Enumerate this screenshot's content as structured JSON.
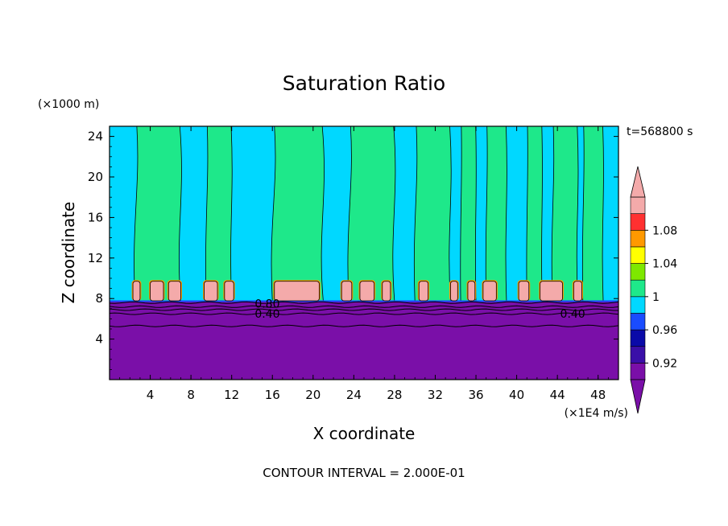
{
  "chart_data": {
    "type": "heatmap",
    "title": "Saturation Ratio",
    "time_label": "t=568800 s",
    "xlabel": "X coordinate",
    "ylabel": "Z coordinate",
    "x_units": "(×1E4 m/s)",
    "y_units": "(×1000 m)",
    "footer": "CONTOUR INTERVAL = 2.000E-01",
    "xlim": [
      0,
      50
    ],
    "ylim": [
      0,
      25
    ],
    "x_ticks": [
      4,
      8,
      12,
      16,
      20,
      24,
      28,
      32,
      36,
      40,
      44,
      48
    ],
    "y_ticks": [
      4,
      8,
      12,
      16,
      20,
      24
    ],
    "colorbar": {
      "labels": [
        "0.92",
        "0.96",
        "1",
        "1.04",
        "1.08"
      ],
      "levels": [
        0.9,
        0.92,
        0.94,
        0.96,
        0.98,
        1.0,
        1.02,
        1.04,
        1.06,
        1.08,
        1.1
      ],
      "colors": [
        "#7a0fa8",
        "#3a0fa8",
        "#0a0aa8",
        "#1a4cff",
        "#00d8ff",
        "#1ee88a",
        "#7ee800",
        "#ffff00",
        "#ff9900",
        "#ff3030",
        "#f4aaaa"
      ],
      "extend": "both"
    },
    "contour_labels": [
      {
        "text": "0.80",
        "x": 15.5,
        "y": 7.5
      },
      {
        "text": "0.40",
        "x": 15.5,
        "y": 6.5
      },
      {
        "text": "0.40",
        "x": 45.5,
        "y": 6.5
      }
    ],
    "fields": {
      "lower_layer": {
        "z_range": [
          0,
          7.7
        ],
        "value": "below 0.90",
        "color": "#7a0fa8"
      },
      "upper_layer": {
        "z_range": [
          7.7,
          25
        ],
        "base_value": 0.99,
        "base_color": "#1ee88a"
      },
      "columns": [
        {
          "x": [
            2.5,
            7.0
          ],
          "value": 1.01
        },
        {
          "x": [
            9.5,
            12.0
          ],
          "value": 1.01
        },
        {
          "x": [
            16.0,
            21.0
          ],
          "value": 1.01
        },
        {
          "x": [
            23.5,
            28.0
          ],
          "value": 1.01
        },
        {
          "x": [
            30.0,
            33.5
          ],
          "value": 1.01
        },
        {
          "x": [
            34.5,
            36.0
          ],
          "value": 1.01
        },
        {
          "x": [
            37.0,
            39.0
          ],
          "value": 1.01
        },
        {
          "x": [
            41.0,
            42.5
          ],
          "value": 1.01
        },
        {
          "x": [
            43.5,
            46.0
          ],
          "value": 1.01
        },
        {
          "x": [
            46.5,
            48.5
          ],
          "value": 1.01
        }
      ],
      "cloud_caps": [
        {
          "x": [
            2.3,
            3.0
          ],
          "value": 1.1
        },
        {
          "x": [
            4.0,
            5.3
          ],
          "value": 1.1
        },
        {
          "x": [
            5.8,
            7.0
          ],
          "value": 1.1
        },
        {
          "x": [
            9.3,
            10.6
          ],
          "value": 1.1
        },
        {
          "x": [
            11.3,
            12.2
          ],
          "value": 1.1
        },
        {
          "x": [
            16.2,
            20.6
          ],
          "value": 1.1
        },
        {
          "x": [
            22.8,
            23.8
          ],
          "value": 1.1
        },
        {
          "x": [
            24.6,
            26.0
          ],
          "value": 1.1
        },
        {
          "x": [
            26.8,
            27.6
          ],
          "value": 1.1
        },
        {
          "x": [
            30.4,
            31.3
          ],
          "value": 1.1
        },
        {
          "x": [
            33.5,
            34.2
          ],
          "value": 1.1
        },
        {
          "x": [
            35.2,
            35.9
          ],
          "value": 1.1
        },
        {
          "x": [
            36.7,
            38.0
          ],
          "value": 1.1
        },
        {
          "x": [
            40.2,
            41.2
          ],
          "value": 1.1
        },
        {
          "x": [
            42.3,
            44.5
          ],
          "value": 1.1
        },
        {
          "x": [
            45.6,
            46.4
          ],
          "value": 1.1
        }
      ]
    }
  }
}
